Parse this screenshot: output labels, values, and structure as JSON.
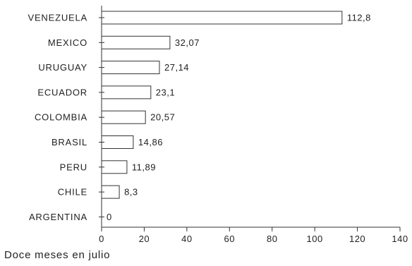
{
  "chart_data": {
    "type": "bar",
    "orientation": "horizontal",
    "categories": [
      "VENEZUELA",
      "MEXICO",
      "URUGUAY",
      "ECUADOR",
      "COLOMBIA",
      "BRASIL",
      "PERU",
      "CHILE",
      "ARGENTINA"
    ],
    "values": [
      112.8,
      32.07,
      27.14,
      23.1,
      20.57,
      14.86,
      11.89,
      8.3,
      0
    ],
    "value_labels": [
      "112,8",
      "32,07",
      "27,14",
      "23,1",
      "20,57",
      "14,86",
      "11,89",
      "8,3",
      "0"
    ],
    "xlim": [
      0,
      140
    ],
    "xticks": [
      0,
      20,
      40,
      60,
      80,
      100,
      120,
      140
    ],
    "xtick_labels": [
      "0",
      "20",
      "40",
      "60",
      "80",
      "100",
      "120",
      "140"
    ],
    "caption": "Doce meses en julio",
    "grid": false,
    "colors": {
      "bar_fill": "#ffffff",
      "bar_stroke": "#333333",
      "axis": "#333333",
      "text": "#222222"
    }
  }
}
